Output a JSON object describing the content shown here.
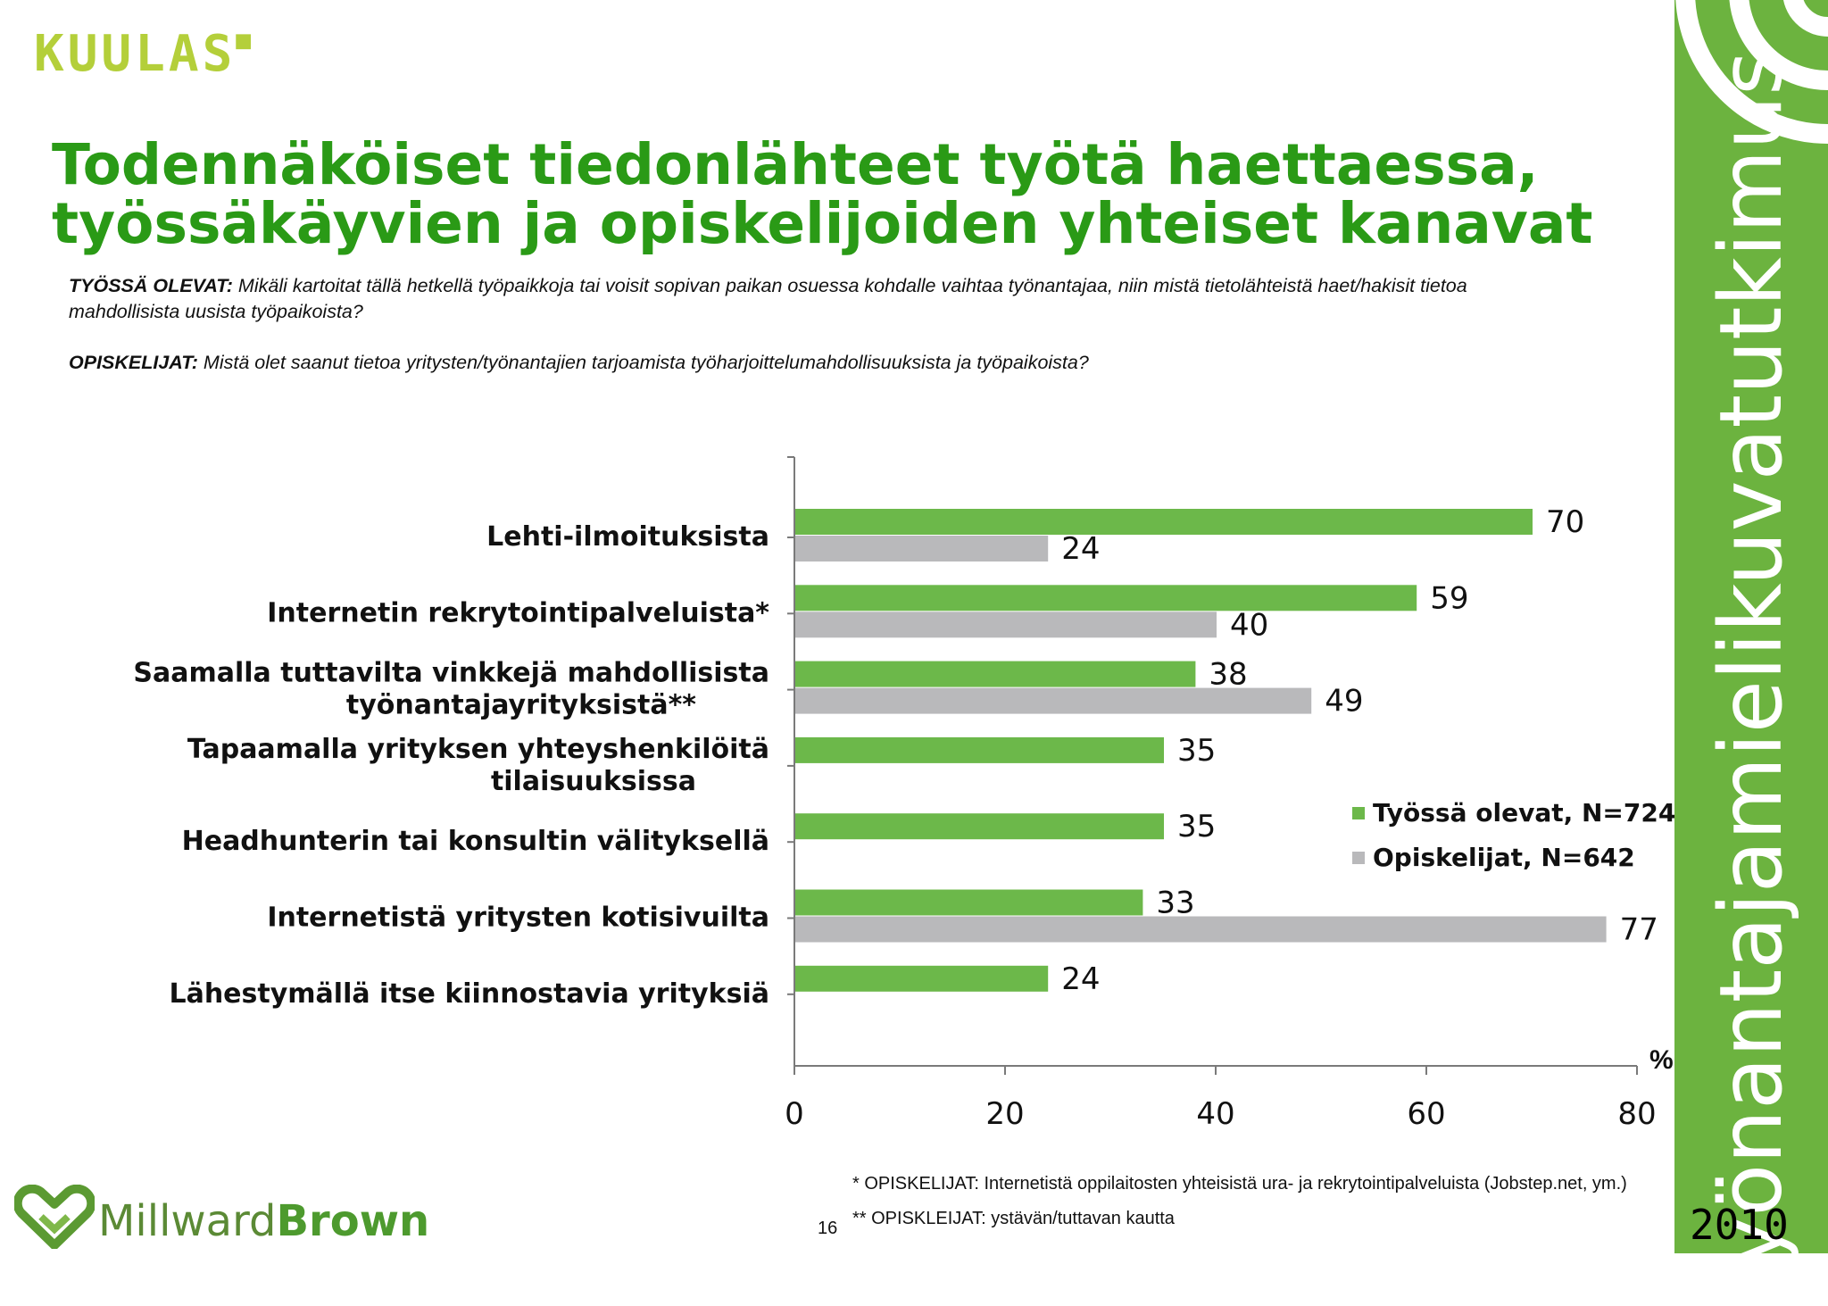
{
  "header": {
    "logo_text": "KUULAS",
    "title_line1": "Todennäköiset tiedonlähteet työtä haettaessa,",
    "title_line2": "työssäkäyvien ja opiskelijoiden yhteiset kanavat"
  },
  "questions": {
    "q1_label": "TYÖSSÄ OLEVAT:",
    "q1_text": " Mikäli kartoitat tällä hetkellä työpaikkoja tai voisit sopivan paikan osuessa kohdalle vaihtaa työnantajaa, niin mistä tietolähteistä haet/hakisit tietoa mahdollisista uusista työpaikoista?",
    "q2_label": "OPISKELIJAT:",
    "q2_text": " Mistä olet saanut tietoa yritysten/työnantajien tarjoamista työharjoittelumahdollisuuksista ja työpaikoista?"
  },
  "chart_data": {
    "type": "bar",
    "orientation": "horizontal",
    "categories": [
      [
        "Lehti-ilmoituksista"
      ],
      [
        "Internetin rekrytointipalveluista*"
      ],
      [
        "Saamalla tuttavilta vinkkejä mahdollisista",
        "työnantajayrityksistä**"
      ],
      [
        "Tapaamalla yrityksen yhteyshenkilöitä",
        "tilaisuuksissa"
      ],
      [
        "Headhunterin tai konsultin välityksellä"
      ],
      [
        "Internetistä yritysten kotisivuilta"
      ],
      [
        "Lähestymällä itse kiinnostavia yrityksiä"
      ]
    ],
    "series": [
      {
        "name": "Työssä olevat, N=724",
        "color": "#6cb84a",
        "values": [
          70,
          59,
          38,
          35,
          35,
          33,
          24
        ]
      },
      {
        "name": "Opiskelijat, N=642",
        "color": "#b9b9bb",
        "values": [
          24,
          40,
          49,
          null,
          null,
          77,
          null
        ]
      }
    ],
    "x_ticks": [
      0,
      20,
      40,
      60,
      80
    ],
    "xlim": [
      0,
      80
    ],
    "unit_label": "%",
    "legend_position": "right"
  },
  "footnotes": {
    "fn1": "* OPISKELIJAT: Internetistä oppilaitosten yhteisistä ura- ja rekrytointipalveluista (Jobstep.net, ym.)",
    "fn2": "** OPISKLEIJAT: ystävän/tuttavan kautta"
  },
  "footer": {
    "page_number": "16",
    "brand_part1": "Millward",
    "brand_part2": "Brown",
    "side_text": "Työnantajamielikuvatutkimus",
    "year": "2010"
  },
  "colors": {
    "title_green": "#2a9a16",
    "band_green": "#6cb33f",
    "bar_green": "#6cb84a",
    "bar_grey": "#b9b9bb"
  }
}
